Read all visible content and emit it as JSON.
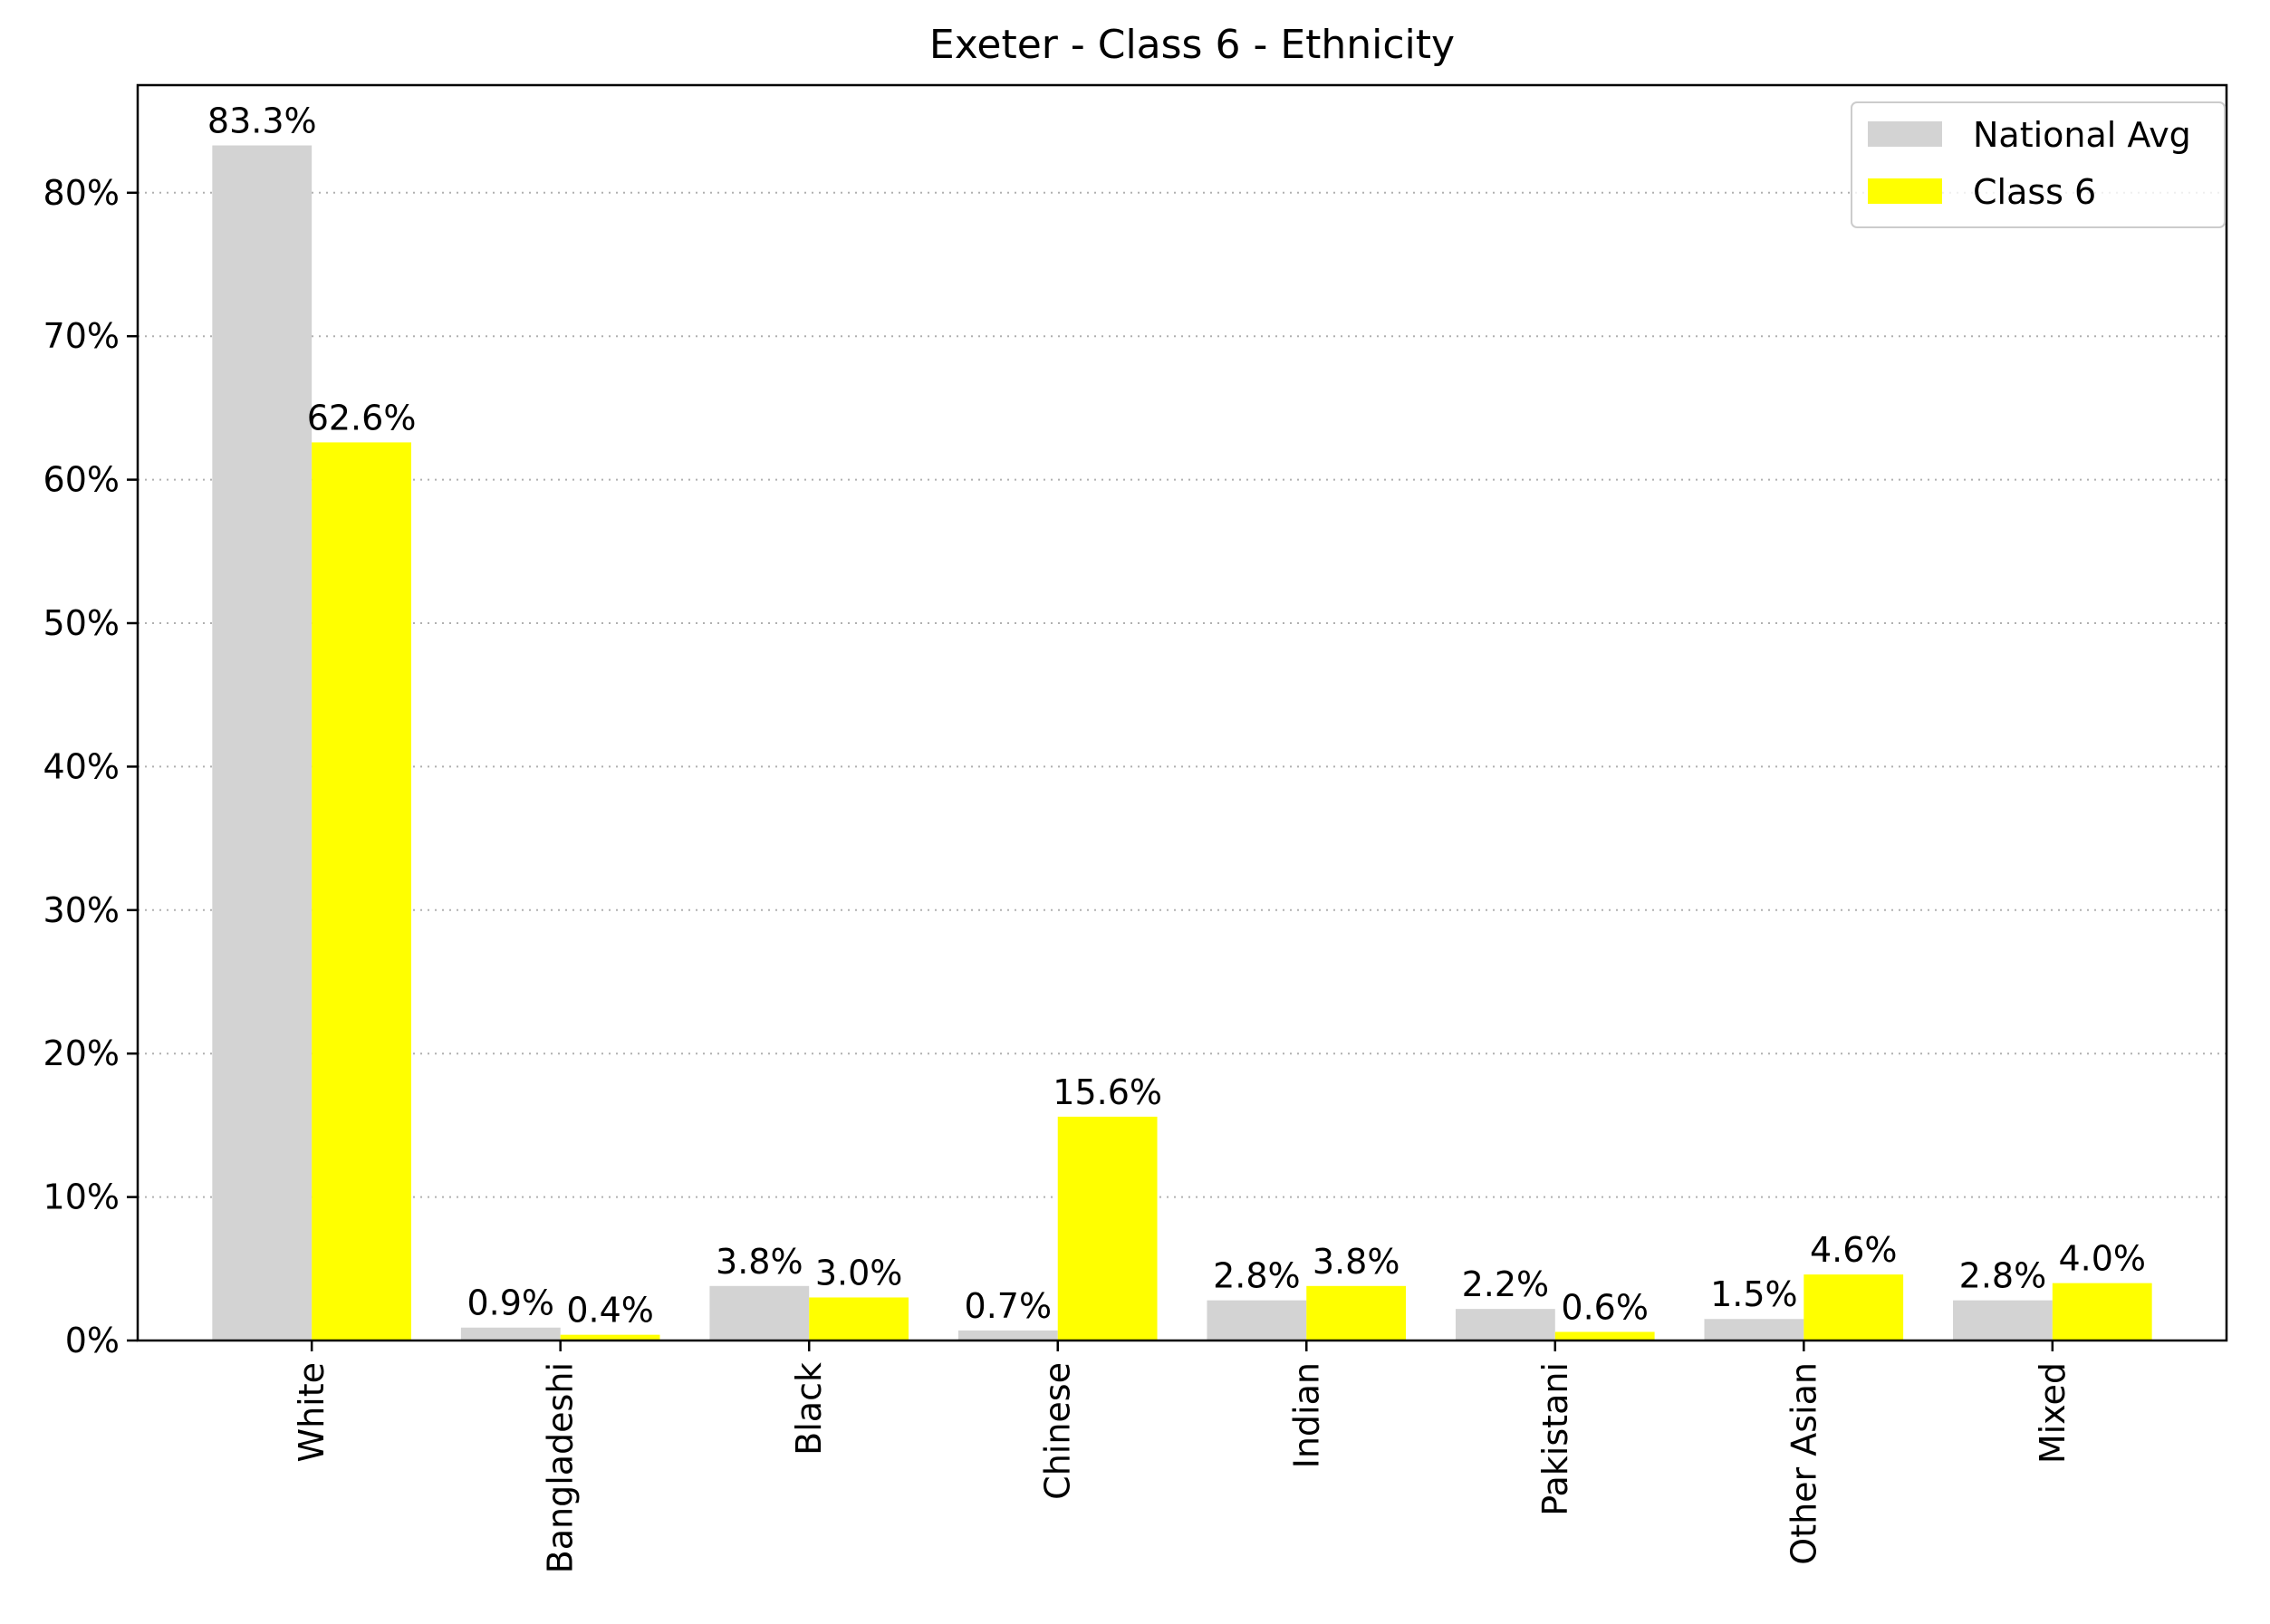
{
  "chart_data": {
    "type": "bar",
    "title": "Exeter - Class 6 - Ethnicity",
    "xlabel": "",
    "ylabel": "",
    "categories": [
      "White",
      "Bangladeshi",
      "Black",
      "Chinese",
      "Indian",
      "Pakistani",
      "Other Asian",
      "Mixed"
    ],
    "series": [
      {
        "name": "National Avg",
        "color": "#d3d3d3",
        "values": [
          83.3,
          0.9,
          3.8,
          0.7,
          2.8,
          2.2,
          1.5,
          2.8
        ],
        "labels": [
          "83.3%",
          "0.9%",
          "3.8%",
          "0.7%",
          "2.8%",
          "2.2%",
          "1.5%",
          "2.8%"
        ]
      },
      {
        "name": "Class 6",
        "color": "#ffff00",
        "values": [
          62.6,
          0.4,
          3.0,
          15.6,
          3.8,
          0.6,
          4.6,
          4.0
        ],
        "labels": [
          "62.6%",
          "0.4%",
          "3.0%",
          "15.6%",
          "3.8%",
          "0.6%",
          "4.6%",
          "4.0%"
        ]
      }
    ],
    "ylim": [
      0,
      87.5
    ],
    "yticks": [
      0,
      10,
      20,
      30,
      40,
      50,
      60,
      70,
      80
    ],
    "ytick_labels": [
      "0%",
      "10%",
      "20%",
      "30%",
      "40%",
      "50%",
      "60%",
      "70%",
      "80%"
    ],
    "grid": "horizontal dotted",
    "legend_position": "top-right"
  }
}
